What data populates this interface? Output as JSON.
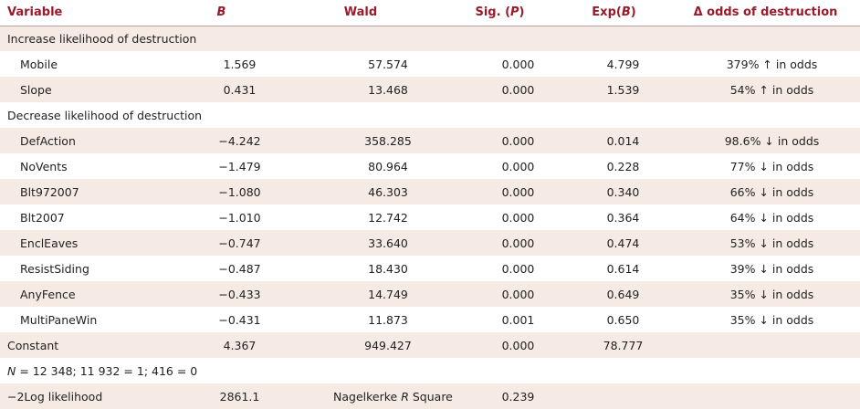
{
  "headers": {
    "variable": "Variable",
    "b": "B",
    "wald": "Wald",
    "sig_prefix": "Sig. (",
    "sig_p": "P",
    "sig_suffix": ")",
    "exp_prefix": "Exp(",
    "exp_b": "B",
    "exp_suffix": ")",
    "odds": "Δ odds of destruction"
  },
  "sections": {
    "increase": "Increase likelihood of destruction",
    "decrease": "Decrease likelihood of destruction"
  },
  "increase_rows": [
    {
      "variable": "Mobile",
      "b": "1.569",
      "wald": "57.574",
      "sig": "0.000",
      "exp": "4.799",
      "odds": "379% ↑ in odds"
    },
    {
      "variable": "Slope",
      "b": "0.431",
      "wald": "13.468",
      "sig": "0.000",
      "exp": "1.539",
      "odds": "54% ↑ in odds"
    }
  ],
  "decrease_rows": [
    {
      "variable": "DefAction",
      "b": "−4.242",
      "wald": "358.285",
      "sig": "0.000",
      "exp": "0.014",
      "odds": "98.6% ↓ in odds"
    },
    {
      "variable": "NoVents",
      "b": "−1.479",
      "wald": "80.964",
      "sig": "0.000",
      "exp": "0.228",
      "odds": "77% ↓ in odds"
    },
    {
      "variable": "Blt972007",
      "b": "−1.080",
      "wald": "46.303",
      "sig": "0.000",
      "exp": "0.340",
      "odds": "66% ↓ in odds"
    },
    {
      "variable": "Blt2007",
      "b": "−1.010",
      "wald": "12.742",
      "sig": "0.000",
      "exp": "0.364",
      "odds": "64% ↓ in odds"
    },
    {
      "variable": "EnclEaves",
      "b": "−0.747",
      "wald": "33.640",
      "sig": "0.000",
      "exp": "0.474",
      "odds": "53% ↓ in odds"
    },
    {
      "variable": "ResistSiding",
      "b": "−0.487",
      "wald": "18.430",
      "sig": "0.000",
      "exp": "0.614",
      "odds": "39% ↓ in odds"
    },
    {
      "variable": "AnyFence",
      "b": "−0.433",
      "wald": "14.749",
      "sig": "0.000",
      "exp": "0.649",
      "odds": "35% ↓ in odds"
    },
    {
      "variable": "MultiPaneWin",
      "b": "−0.431",
      "wald": "11.873",
      "sig": "0.001",
      "exp": "0.650",
      "odds": "35% ↓ in odds"
    }
  ],
  "constant": {
    "variable": "Constant",
    "b": "4.367",
    "wald": "949.427",
    "sig": "0.000",
    "exp": "78.777",
    "odds": ""
  },
  "n_note": {
    "n_label": "N",
    "rest": " = 12 348; 11 932 = 1; 416 = 0"
  },
  "likelihood": {
    "label": "−2Log likelihood",
    "value": "2861.1",
    "r2_prefix": "Nagelkerke ",
    "r2_r": "R",
    "r2_suffix": " Square",
    "r2_value": "0.239"
  }
}
